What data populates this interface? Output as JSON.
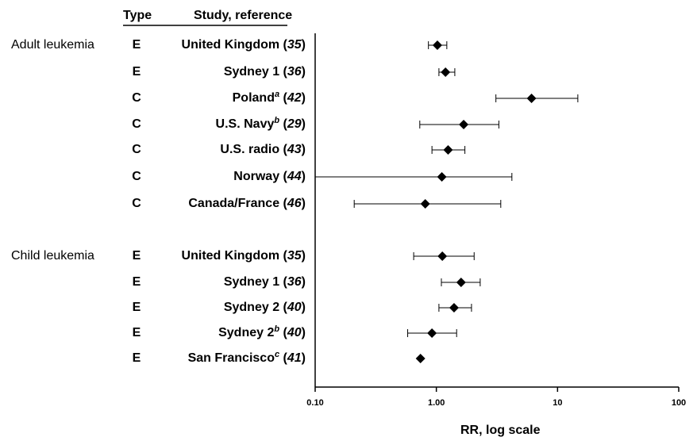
{
  "header": {
    "type_label": "Type",
    "study_label": "Study, reference"
  },
  "groups": [
    {
      "label": "Adult leukemia"
    },
    {
      "label": "Child leukemia"
    }
  ],
  "rows": [
    {
      "group": 0,
      "type": "E",
      "name": "United Kingdom",
      "sup": "",
      "ref": "35"
    },
    {
      "group": 0,
      "type": "E",
      "name": "Sydney 1",
      "sup": "",
      "ref": "36"
    },
    {
      "group": 0,
      "type": "C",
      "name": "Poland",
      "sup": "a",
      "ref": "42"
    },
    {
      "group": 0,
      "type": "C",
      "name": "U.S. Navy",
      "sup": "b",
      "ref": "29"
    },
    {
      "group": 0,
      "type": "C",
      "name": "U.S. radio",
      "sup": "",
      "ref": "43"
    },
    {
      "group": 0,
      "type": "C",
      "name": "Norway",
      "sup": "",
      "ref": "44"
    },
    {
      "group": 0,
      "type": "C",
      "name": "Canada/France",
      "sup": "",
      "ref": "46"
    },
    {
      "group": 1,
      "type": "E",
      "name": "United Kingdom",
      "sup": "",
      "ref": "35"
    },
    {
      "group": 1,
      "type": "E",
      "name": "Sydney 1",
      "sup": "",
      "ref": "36"
    },
    {
      "group": 1,
      "type": "E",
      "name": "Sydney 2",
      "sup": "",
      "ref": "40"
    },
    {
      "group": 1,
      "type": "E",
      "name": "Sydney 2",
      "sup": "b",
      "ref": "40"
    },
    {
      "group": 1,
      "type": "E",
      "name": "San Francisco",
      "sup": "c",
      "ref": "41"
    }
  ],
  "chart_data": {
    "type": "forest",
    "xscale": "log",
    "xlim": [
      0.1,
      100
    ],
    "xticks": [
      "0.10",
      "1.00",
      "10",
      "100"
    ],
    "xlabel": "RR, log scale",
    "marker_color": "#000000",
    "points": [
      {
        "rr": 1.02,
        "lo": 0.86,
        "hi": 1.22
      },
      {
        "rr": 1.19,
        "lo": 1.05,
        "hi": 1.42
      },
      {
        "rr": 6.1,
        "lo": 3.1,
        "hi": 14.7
      },
      {
        "rr": 1.68,
        "lo": 0.73,
        "hi": 3.28
      },
      {
        "rr": 1.25,
        "lo": 0.92,
        "hi": 1.72
      },
      {
        "rr": 1.11,
        "lo": 0.1,
        "hi": 4.2
      },
      {
        "rr": 0.81,
        "lo": 0.21,
        "hi": 3.4
      },
      {
        "rr": 1.12,
        "lo": 0.65,
        "hi": 2.05
      },
      {
        "rr": 1.6,
        "lo": 1.1,
        "hi": 2.3
      },
      {
        "rr": 1.4,
        "lo": 1.05,
        "hi": 1.95
      },
      {
        "rr": 0.92,
        "lo": 0.58,
        "hi": 1.47
      },
      {
        "rr": 0.74,
        "lo": null,
        "hi": null
      }
    ]
  }
}
